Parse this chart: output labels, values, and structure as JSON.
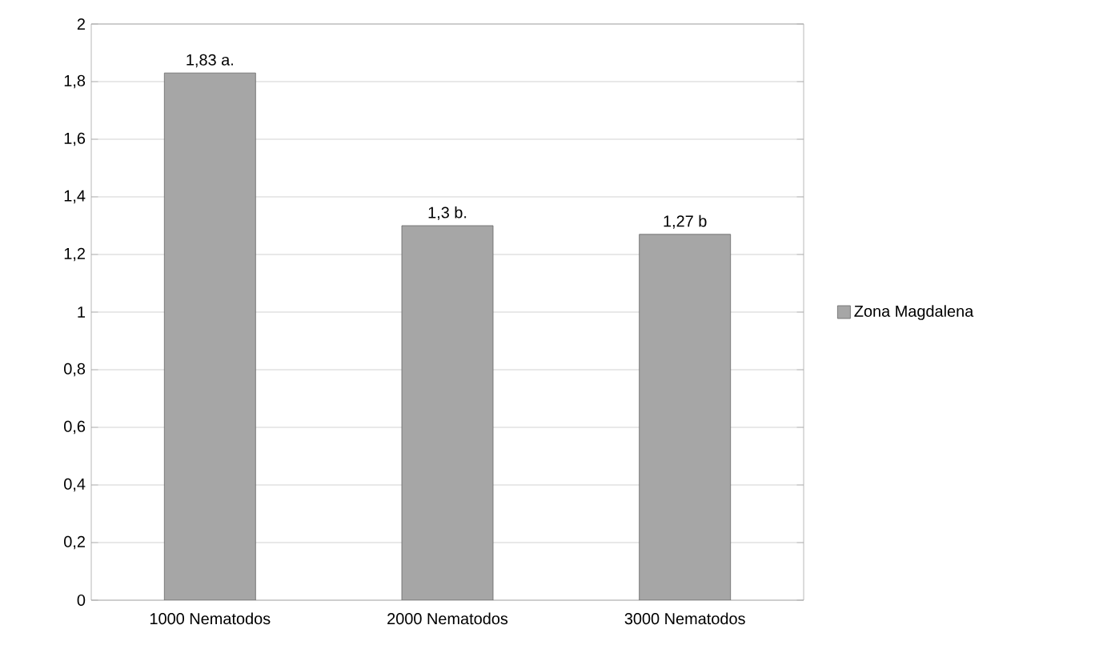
{
  "chart_data": {
    "type": "bar",
    "categories": [
      "1000 Nematodos",
      "2000 Nematodos",
      "3000 Nematodos"
    ],
    "series": [
      {
        "name": "Zona Magdalena",
        "color": "#a6a6a6",
        "values": [
          1.83,
          1.3,
          1.27
        ],
        "value_labels": [
          "1,83  a.",
          "1,3 b.",
          "1,27 b"
        ]
      }
    ],
    "ylim": [
      0,
      2
    ],
    "yticks": [
      0,
      {
        "value": 0.2,
        "label": "0,2"
      },
      {
        "value": 0.4,
        "label": "0,4"
      },
      {
        "value": 0.6,
        "label": "0,6"
      },
      {
        "value": 0.8,
        "label": "0,8"
      },
      1,
      {
        "value": 1.2,
        "label": "1,2"
      },
      {
        "value": 1.4,
        "label": "1,4"
      },
      {
        "value": 1.6,
        "label": "1,6"
      },
      {
        "value": 1.8,
        "label": "1,8"
      },
      2
    ],
    "grid": "y",
    "legend": "right"
  }
}
